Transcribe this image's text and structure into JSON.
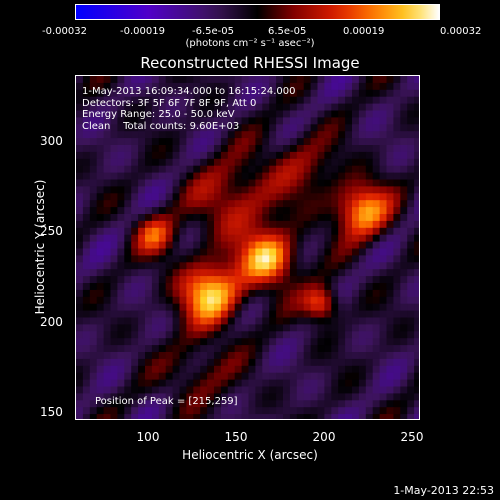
{
  "colorbar": {
    "ticks": [
      "-0.00032",
      "-0.00019",
      "-6.5e-05",
      "6.5e-05",
      "0.00019",
      "0.00032"
    ],
    "units": "(photons cm⁻² s⁻¹ asec⁻²)"
  },
  "title": "Reconstructed RHESSI Image",
  "annotation": {
    "time": "1-May-2013 16:09:34.000 to 16:15:24.000",
    "detectors": "Detectors: 3F 5F 6F 7F 8F 9F, Att 0",
    "energy": "Energy Range: 25.0 - 50.0 keV",
    "clean": "Clean    Total counts: 9.60E+03"
  },
  "peak_label": "Position of Peak = [215,259]",
  "x_axis": {
    "label": "Heliocentric X (arcsec)",
    "ticks": [
      "100",
      "150",
      "200",
      "250"
    ]
  },
  "y_axis": {
    "label": "Heliocentric Y (arcsec)",
    "ticks": [
      "300",
      "250",
      "200",
      "150"
    ]
  },
  "footer_date": "1-May-2013 22:53"
}
